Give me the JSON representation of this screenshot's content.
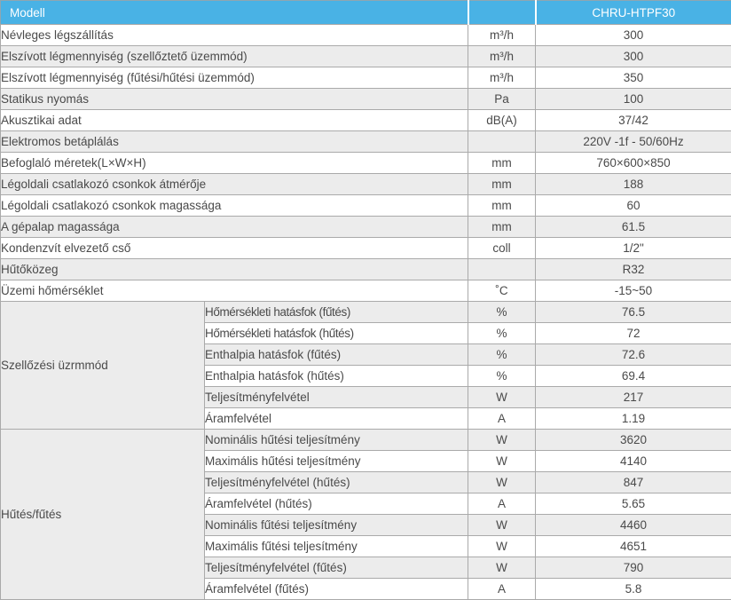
{
  "colors": {
    "header_bg": "#49b2e5",
    "header_text": "#ffffff",
    "row_alt_bg": "#ececec",
    "border": "#aaaaaa",
    "text": "#4a4a4a"
  },
  "header": {
    "model_label": "Modell",
    "unit_label": "",
    "model_value": "CHRU-HTPF30"
  },
  "rows": [
    {
      "name": "Névleges légszállítás",
      "unit": "m³/h",
      "value": "300"
    },
    {
      "name": "Elszívott légmennyiség (szellőztető üzemmód)",
      "unit": "m³/h",
      "value": "300"
    },
    {
      "name": "Elszívott légmennyiség (fűtési/hűtési üzemmód)",
      "unit": "m³/h",
      "value": "350"
    },
    {
      "name": "Statikus nyomás",
      "unit": "Pa",
      "value": "100"
    },
    {
      "name": "Akusztikai adat",
      "unit": "dB(A)",
      "value": "37/42"
    },
    {
      "name": "Elektromos betáplálás",
      "unit": "",
      "value": "220V -1f - 50/60Hz"
    },
    {
      "name": "Befoglaló méretek(L×W×H)",
      "unit": "mm",
      "value": "760×600×850"
    },
    {
      "name": "Légoldali csatlakozó csonkok átmérője",
      "unit": "mm",
      "value": "188"
    },
    {
      "name": "Légoldali csatlakozó csonkok magassága",
      "unit": "mm",
      "value": "60"
    },
    {
      "name": "A gépalap magassága",
      "unit": "mm",
      "value": "61.5"
    },
    {
      "name": "Kondenzvít elvezető cső",
      "unit": "coll",
      "value": "1/2\""
    },
    {
      "name": "Hűtőközeg",
      "unit": "",
      "value": "R32"
    },
    {
      "name": "Üzemi hőmérséklet",
      "unit": "˚C",
      "value": "-15~50"
    }
  ],
  "groups": [
    {
      "label": "Szellőzési üzrmmód",
      "rows": [
        {
          "name": "Hőmérsékleti hatásfok (fűtés)",
          "unit": "%",
          "value": "76.5"
        },
        {
          "name": "Hőmérsékleti hatásfok (hűtés)",
          "unit": "%",
          "value": "72"
        },
        {
          "name": "Enthalpia hatásfok (fűtés)",
          "unit": "%",
          "value": "72.6"
        },
        {
          "name": "Enthalpia hatásfok (hűtés)",
          "unit": "%",
          "value": "69.4"
        },
        {
          "name": "Teljesítményfelvétel",
          "unit": "W",
          "value": "217"
        },
        {
          "name": "Áramfelvétel",
          "unit": "A",
          "value": "1.19"
        }
      ]
    },
    {
      "label": "Hűtés/fűtés",
      "rows": [
        {
          "name": "Nominális hűtési teljesítmény",
          "unit": "W",
          "value": "3620"
        },
        {
          "name": "Maximális hűtési teljesítmény",
          "unit": "W",
          "value": "4140"
        },
        {
          "name": "Teljesítményfelvétel (hűtés)",
          "unit": "W",
          "value": "847"
        },
        {
          "name": "Áramfelvétel (hűtés)",
          "unit": "A",
          "value": "5.65"
        },
        {
          "name": "Nominális fűtési teljesítmény",
          "unit": "W",
          "value": "4460"
        },
        {
          "name": "Maximális fűtési teljesítmény",
          "unit": "W",
          "value": "4651"
        },
        {
          "name": "Teljesítményfelvétel (fűtés)",
          "unit": "W",
          "value": "790"
        },
        {
          "name": "Áramfelvétel (fűtés)",
          "unit": "A",
          "value": "5.8"
        }
      ]
    }
  ]
}
